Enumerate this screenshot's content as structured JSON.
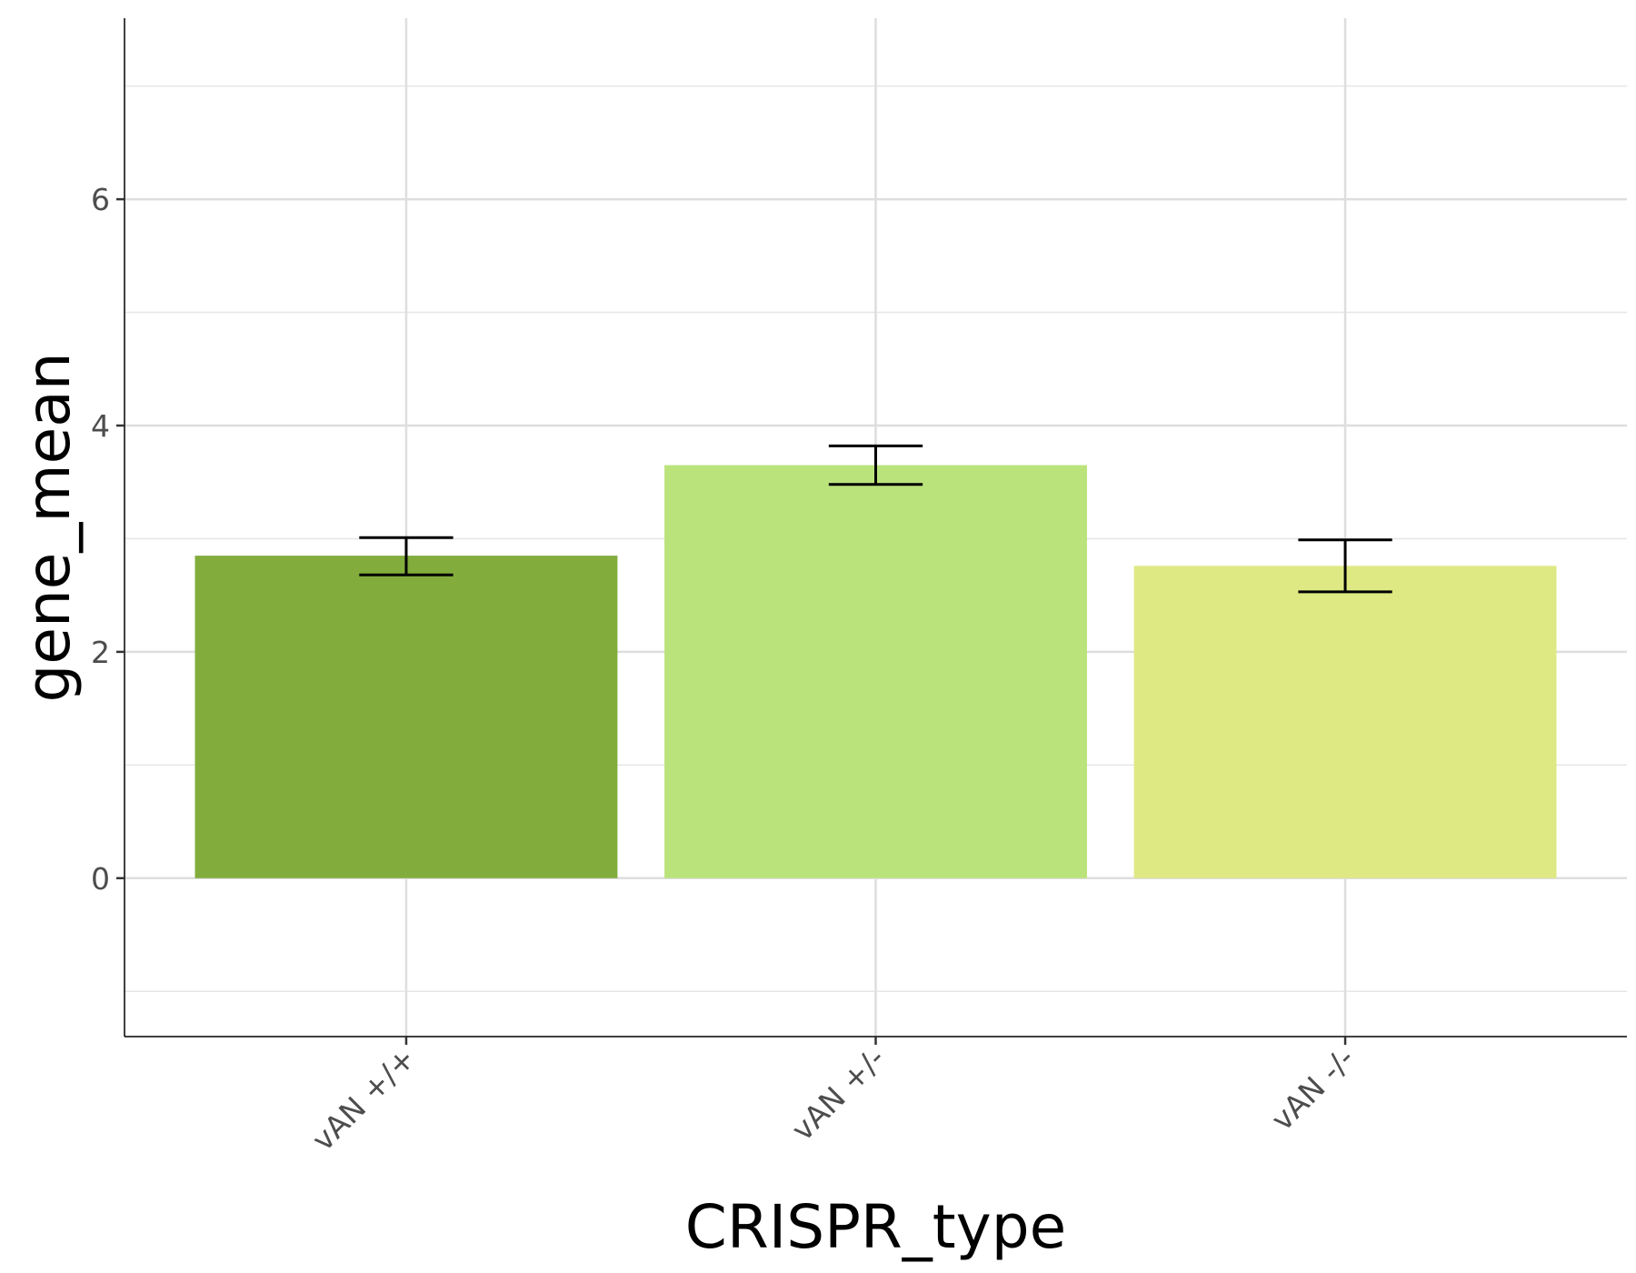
{
  "chart_data": {
    "type": "bar",
    "categories": [
      "vAN +/+",
      "vAN +/-",
      "vAN -/-"
    ],
    "values": [
      2.85,
      3.65,
      2.76
    ],
    "error": [
      {
        "low": 2.68,
        "high": 3.01
      },
      {
        "low": 3.48,
        "high": 3.82
      },
      {
        "low": 2.53,
        "high": 2.99
      }
    ],
    "colors": [
      "#82ad3c",
      "#bbe37c",
      "#dfe983"
    ],
    "xlabel": "CRISPR_type",
    "ylabel": "gene_mean",
    "ylim": [
      -1.4,
      7.6
    ],
    "y_ticks": [
      0,
      2,
      4,
      6
    ],
    "y_minor_ticks": [
      -1,
      1,
      3,
      5,
      7
    ],
    "grid": true,
    "legend": "none"
  }
}
